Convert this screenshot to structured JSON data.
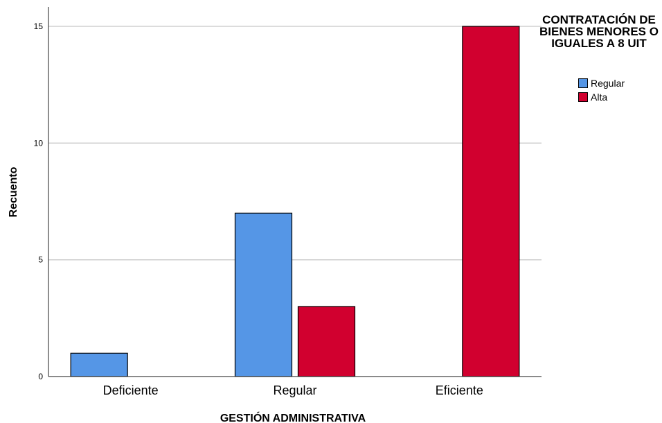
{
  "chart_data": {
    "type": "bar",
    "title": "",
    "xlabel": "GESTIÓN ADMINISTRATIVA",
    "ylabel": "Recuento",
    "categories": [
      "Deficiente",
      "Regular",
      "Eficiente"
    ],
    "series": [
      {
        "name": "Regular",
        "color": "#5596e6",
        "values": [
          1,
          7,
          0
        ]
      },
      {
        "name": "Alta",
        "color": "#d1002f",
        "values": [
          0,
          3,
          15
        ]
      }
    ],
    "ylim": [
      0,
      16
    ],
    "yticks": [
      0,
      5,
      10,
      15
    ],
    "grid": true,
    "legend": {
      "title": "CONTRATACIÓN DE BIENES MENORES O IGUALES A 8 UIT",
      "placement": "top-right"
    }
  }
}
